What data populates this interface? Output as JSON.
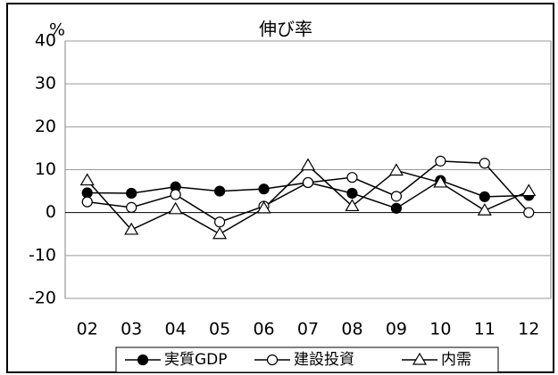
{
  "chart_data": {
    "type": "line",
    "title": "伸び率",
    "y_unit": "%",
    "categories": [
      "02",
      "03",
      "04",
      "05",
      "06",
      "07",
      "08",
      "09",
      "10",
      "11",
      "12"
    ],
    "series": [
      {
        "name": "実質GDP",
        "color": "#000000",
        "marker": "filled-circle",
        "values": [
          4.6,
          4.5,
          6,
          5,
          5.5,
          7,
          4.5,
          1,
          7.5,
          3.7,
          4
        ]
      },
      {
        "name": "建設投資",
        "color": "#000000",
        "marker": "open-circle",
        "values": [
          2.5,
          1.2,
          4.2,
          -2.2,
          1.5,
          7,
          8.2,
          3.8,
          12,
          11.5,
          0
        ]
      },
      {
        "name": "内需",
        "color": "#000000",
        "marker": "open-triangle",
        "values": [
          7.5,
          -4,
          0.8,
          -5,
          1,
          11,
          1.5,
          9.8,
          7,
          0.5,
          5
        ]
      }
    ],
    "ylim": [
      -20,
      40
    ],
    "yticks": [
      40,
      30,
      20,
      10,
      0,
      -10,
      -20
    ],
    "grid": true,
    "legend": "bottom"
  }
}
